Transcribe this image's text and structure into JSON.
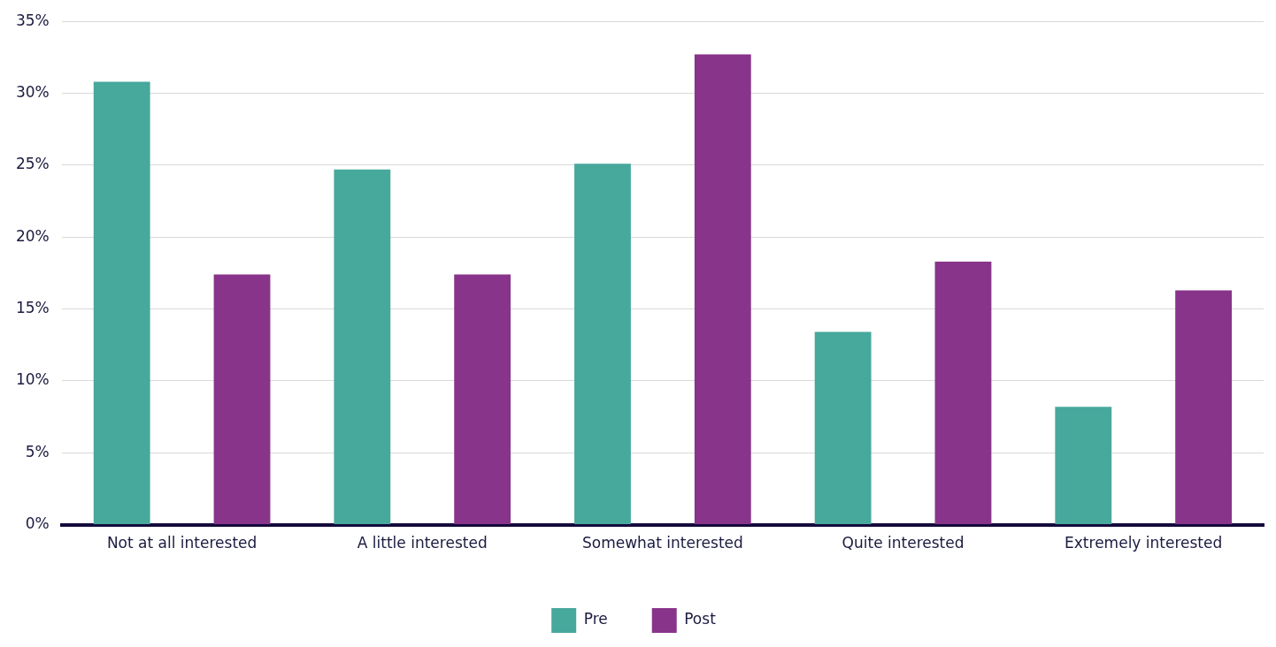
{
  "chart_data": {
    "type": "bar",
    "categories": [
      "Not at all interested",
      "A little interested",
      "Somewhat interested",
      "Quite interested",
      "Extremely interested"
    ],
    "series": [
      {
        "name": "Pre",
        "color": "#47a89c",
        "values": [
          30.8,
          24.7,
          25.1,
          13.4,
          8.2
        ]
      },
      {
        "name": "Post",
        "color": "#88348a",
        "values": [
          17.4,
          17.4,
          32.7,
          18.3,
          16.3
        ]
      }
    ],
    "ylim": [
      0,
      35
    ],
    "yticks": [
      {
        "value": 0,
        "label": "0%"
      },
      {
        "value": 5,
        "label": "5%"
      },
      {
        "value": 10,
        "label": "10%"
      },
      {
        "value": 15,
        "label": "15%"
      },
      {
        "value": 20,
        "label": "20%"
      },
      {
        "value": 25,
        "label": "25%"
      },
      {
        "value": 30,
        "label": "30%"
      },
      {
        "value": 35,
        "label": "35%"
      }
    ],
    "grid": "y",
    "legend": "bottom"
  }
}
